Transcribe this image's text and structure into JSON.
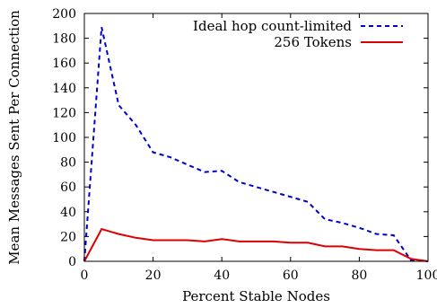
{
  "chart_data": {
    "type": "line",
    "xlabel": "Percent Stable Nodes",
    "ylabel": "Mean Messages Sent Per Connection",
    "xlim": [
      0,
      100
    ],
    "ylim": [
      0,
      200
    ],
    "xticks": [
      0,
      20,
      40,
      60,
      80,
      100
    ],
    "yticks": [
      0,
      20,
      40,
      60,
      80,
      100,
      120,
      140,
      160,
      180,
      200
    ],
    "grid": false,
    "legend_position": "top-right",
    "series": [
      {
        "name": "Ideal hop count-limited",
        "color": "#0000cc",
        "style": "dashed",
        "x": [
          0,
          5,
          10,
          15,
          20,
          25,
          30,
          35,
          40,
          45,
          50,
          55,
          60,
          65,
          70,
          75,
          80,
          85,
          90,
          95,
          100
        ],
        "y": [
          0,
          189,
          126,
          110,
          88,
          84,
          78,
          72,
          73,
          64,
          60,
          56,
          52,
          48,
          34,
          31,
          27,
          22,
          21,
          1,
          0
        ]
      },
      {
        "name": "256 Tokens",
        "color": "#dd0000",
        "style": "solid",
        "x": [
          0,
          5,
          10,
          15,
          20,
          25,
          30,
          35,
          40,
          45,
          50,
          55,
          60,
          65,
          70,
          75,
          80,
          85,
          90,
          95,
          100
        ],
        "y": [
          0,
          26,
          22,
          19,
          17,
          17,
          17,
          16,
          18,
          16,
          16,
          16,
          15,
          15,
          12,
          12,
          10,
          9,
          9,
          2,
          0
        ]
      }
    ]
  }
}
